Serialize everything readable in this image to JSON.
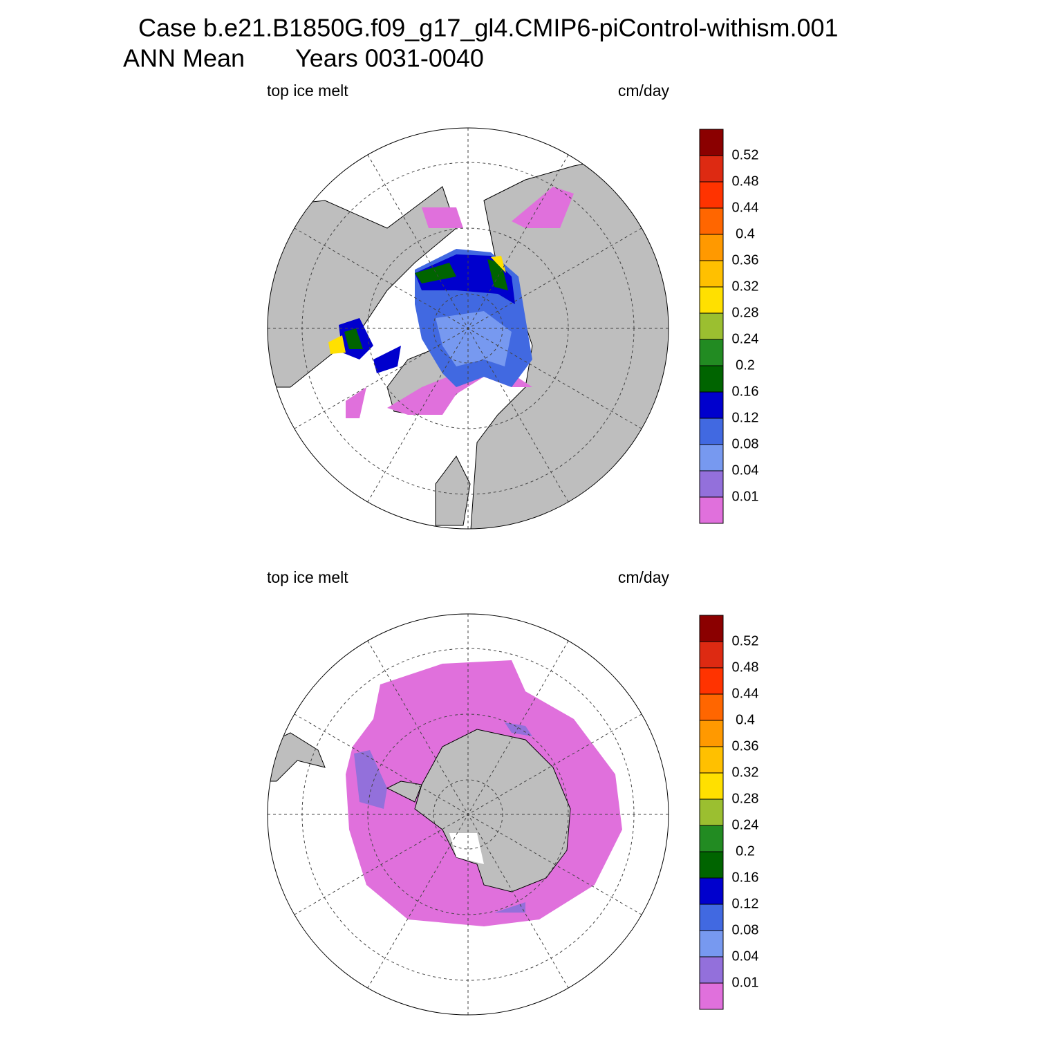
{
  "header": {
    "title": "Case b.e21.B1850G.f09_g17_gl4.CMIP6-piControl-withism.001",
    "season": "ANN Mean",
    "years": "Years 0031-0040"
  },
  "panels": [
    {
      "left_label": "top ice melt",
      "right_label": "cm/day"
    },
    {
      "left_label": "top ice melt",
      "right_label": "cm/day"
    }
  ],
  "colorbar": {
    "levels": [
      0.01,
      0.04,
      0.08,
      0.12,
      0.16,
      0.2,
      0.24,
      0.28,
      0.32,
      0.36,
      0.4,
      0.44,
      0.48,
      0.52
    ],
    "colors": [
      "#e070dc",
      "#9370db",
      "#7799f0",
      "#4169e1",
      "#0000cd",
      "#006400",
      "#228b22",
      "#9bbf30",
      "#ffe000",
      "#ffc000",
      "#ff9900",
      "#ff6600",
      "#ff3300",
      "#dd2a12",
      "#8b0000"
    ]
  }
}
